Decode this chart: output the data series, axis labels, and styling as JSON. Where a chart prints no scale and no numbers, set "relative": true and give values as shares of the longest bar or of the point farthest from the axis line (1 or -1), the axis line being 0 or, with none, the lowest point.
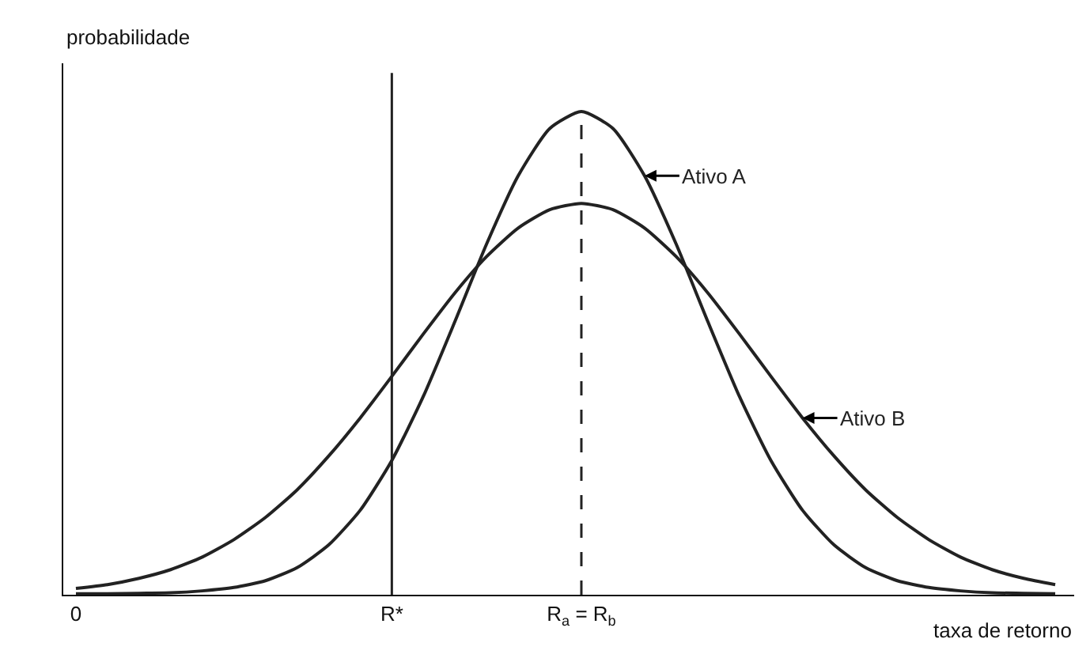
{
  "chart_data": {
    "type": "line",
    "relative": true,
    "xlabel": "taxa de retorno",
    "ylabel": "probabilidade",
    "categories": [
      "0",
      null,
      null,
      null,
      null,
      null,
      null,
      null,
      null,
      null,
      "R*",
      null,
      null,
      null,
      null,
      null,
      "R$_{a}$ = R$_{b}$",
      null,
      null,
      null,
      null,
      null,
      null,
      null,
      null,
      null,
      null,
      null,
      null,
      null,
      null,
      null
    ],
    "series": [
      {
        "name": "Ativo A",
        "color": "#222222",
        "values": [
          0.002,
          0.002,
          0.003,
          0.004,
          0.008,
          0.015,
          0.029,
          0.056,
          0.103,
          0.175,
          0.278,
          0.411,
          0.566,
          0.726,
          0.867,
          0.965,
          1,
          0.965,
          0.867,
          0.726,
          0.566,
          0.411,
          0.278,
          0.175,
          0.103,
          0.056,
          0.029,
          0.015,
          0.008,
          0.004,
          0.003,
          0.002
        ]
      },
      {
        "name": "Ativo B",
        "color": "#222222",
        "values": [
          0.013,
          0.021,
          0.034,
          0.052,
          0.078,
          0.114,
          0.16,
          0.217,
          0.287,
          0.366,
          0.452,
          0.54,
          0.625,
          0.7,
          0.759,
          0.797,
          0.81,
          0.797,
          0.759,
          0.7,
          0.625,
          0.54,
          0.452,
          0.366,
          0.287,
          0.217,
          0.16,
          0.114,
          0.078,
          0.052,
          0.034,
          0.021
        ]
      }
    ],
    "ref_lines": [
      {
        "axis": "x",
        "value": "R*",
        "color": "#222222",
        "line_style": "solid"
      },
      {
        "axis": "x",
        "value": "R$_{a}$ = R$_{b}$",
        "color": "#222222",
        "line_style": "dashed"
      }
    ],
    "legend": "right",
    "marker": "none",
    "line_style": "solid"
  }
}
